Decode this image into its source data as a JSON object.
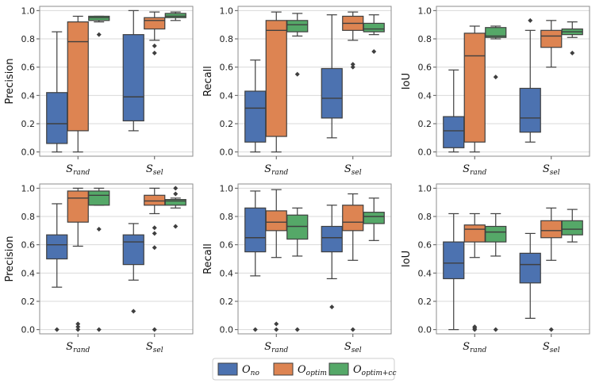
{
  "legend": {
    "entries": [
      {
        "base": "O",
        "sub": "no",
        "color": "#4c72b0"
      },
      {
        "base": "O",
        "sub": "optim",
        "color": "#dd8452"
      },
      {
        "base": "O",
        "sub": "optim+cc",
        "color": "#55a868"
      }
    ]
  },
  "chart_data": [
    {
      "type": "box",
      "ylabel": "Precision",
      "ylim": [
        -0.03,
        1.03
      ],
      "yticks": [
        "0.0",
        "0.2",
        "0.4",
        "0.6",
        "0.8",
        "1.0"
      ],
      "categories": [
        {
          "base": "S",
          "sub": "rand"
        },
        {
          "base": "S",
          "sub": "sel"
        }
      ],
      "groups": [
        [
          {
            "q1": 0.06,
            "med": 0.2,
            "q3": 0.42,
            "lo": 0.0,
            "hi": 0.85,
            "fliers": []
          },
          {
            "q1": 0.15,
            "med": 0.78,
            "q3": 0.92,
            "lo": 0.0,
            "hi": 0.96,
            "fliers": []
          },
          {
            "q1": 0.93,
            "med": 0.95,
            "q3": 0.96,
            "lo": 0.92,
            "hi": 0.96,
            "fliers": [
              0.83
            ]
          }
        ],
        [
          {
            "q1": 0.22,
            "med": 0.39,
            "q3": 0.83,
            "lo": 0.15,
            "hi": 1.0,
            "fliers": []
          },
          {
            "q1": 0.87,
            "med": 0.93,
            "q3": 0.95,
            "lo": 0.79,
            "hi": 0.99,
            "fliers": [
              0.7,
              0.75
            ]
          },
          {
            "q1": 0.95,
            "med": 0.96,
            "q3": 0.98,
            "lo": 0.93,
            "hi": 0.99,
            "fliers": []
          }
        ]
      ]
    },
    {
      "type": "box",
      "ylabel": "Recall",
      "ylim": [
        -0.03,
        1.03
      ],
      "yticks": [
        "0.0",
        "0.2",
        "0.4",
        "0.6",
        "0.8",
        "1.0"
      ],
      "categories": [
        {
          "base": "S",
          "sub": "rand"
        },
        {
          "base": "S",
          "sub": "sel"
        }
      ],
      "groups": [
        [
          {
            "q1": 0.07,
            "med": 0.31,
            "q3": 0.43,
            "lo": 0.0,
            "hi": 0.65,
            "fliers": []
          },
          {
            "q1": 0.11,
            "med": 0.86,
            "q3": 0.93,
            "lo": 0.0,
            "hi": 0.99,
            "fliers": []
          },
          {
            "q1": 0.85,
            "med": 0.9,
            "q3": 0.93,
            "lo": 0.82,
            "hi": 0.98,
            "fliers": [
              0.55
            ]
          }
        ],
        [
          {
            "q1": 0.24,
            "med": 0.38,
            "q3": 0.59,
            "lo": 0.1,
            "hi": 0.97,
            "fliers": []
          },
          {
            "q1": 0.86,
            "med": 0.91,
            "q3": 0.96,
            "lo": 0.79,
            "hi": 0.99,
            "fliers": [
              0.6,
              0.62
            ]
          },
          {
            "q1": 0.85,
            "med": 0.87,
            "q3": 0.91,
            "lo": 0.83,
            "hi": 0.97,
            "fliers": [
              0.71
            ]
          }
        ]
      ]
    },
    {
      "type": "box",
      "ylabel": "IoU",
      "ylim": [
        -0.03,
        1.03
      ],
      "yticks": [
        "0.0",
        "0.2",
        "0.4",
        "0.6",
        "0.8",
        "1.0"
      ],
      "categories": [
        {
          "base": "S",
          "sub": "rand"
        },
        {
          "base": "S",
          "sub": "sel"
        }
      ],
      "groups": [
        [
          {
            "q1": 0.03,
            "med": 0.15,
            "q3": 0.25,
            "lo": 0.0,
            "hi": 0.58,
            "fliers": []
          },
          {
            "q1": 0.07,
            "med": 0.68,
            "q3": 0.84,
            "lo": 0.0,
            "hi": 0.89,
            "fliers": []
          },
          {
            "q1": 0.81,
            "med": 0.82,
            "q3": 0.88,
            "lo": 0.8,
            "hi": 0.89,
            "fliers": [
              0.53
            ]
          }
        ],
        [
          {
            "q1": 0.14,
            "med": 0.24,
            "q3": 0.45,
            "lo": 0.07,
            "hi": 0.86,
            "fliers": [
              0.93
            ]
          },
          {
            "q1": 0.74,
            "med": 0.82,
            "q3": 0.86,
            "lo": 0.6,
            "hi": 0.93,
            "fliers": []
          },
          {
            "q1": 0.83,
            "med": 0.85,
            "q3": 0.87,
            "lo": 0.81,
            "hi": 0.92,
            "fliers": [
              0.7
            ]
          }
        ]
      ]
    },
    {
      "type": "box",
      "ylabel": "Precision",
      "ylim": [
        -0.03,
        1.03
      ],
      "yticks": [
        "0.0",
        "0.2",
        "0.4",
        "0.6",
        "0.8",
        "1.0"
      ],
      "categories": [
        {
          "base": "S",
          "sub": "rand"
        },
        {
          "base": "S",
          "sub": "sel"
        }
      ],
      "groups": [
        [
          {
            "q1": 0.5,
            "med": 0.6,
            "q3": 0.67,
            "lo": 0.3,
            "hi": 0.89,
            "fliers": [
              0.0
            ]
          },
          {
            "q1": 0.76,
            "med": 0.93,
            "q3": 0.98,
            "lo": 0.59,
            "hi": 1.0,
            "fliers": [
              0.0,
              0.02,
              0.04
            ]
          },
          {
            "q1": 0.88,
            "med": 0.95,
            "q3": 0.98,
            "lo": 0.88,
            "hi": 1.0,
            "fliers": [
              0.71,
              0.0
            ]
          }
        ],
        [
          {
            "q1": 0.46,
            "med": 0.62,
            "q3": 0.67,
            "lo": 0.35,
            "hi": 0.75,
            "fliers": [
              0.13
            ]
          },
          {
            "q1": 0.88,
            "med": 0.91,
            "q3": 0.95,
            "lo": 0.82,
            "hi": 1.0,
            "fliers": [
              0.72,
              0.68,
              0.58,
              0.0
            ]
          },
          {
            "q1": 0.88,
            "med": 0.91,
            "q3": 0.92,
            "lo": 0.86,
            "hi": 0.93,
            "fliers": [
              1.0,
              0.96,
              0.73
            ]
          }
        ]
      ]
    },
    {
      "type": "box",
      "ylabel": "Recall",
      "ylim": [
        -0.03,
        1.03
      ],
      "yticks": [
        "0.0",
        "0.2",
        "0.4",
        "0.6",
        "0.8",
        "1.0"
      ],
      "categories": [
        {
          "base": "S",
          "sub": "rand"
        },
        {
          "base": "S",
          "sub": "sel"
        }
      ],
      "groups": [
        [
          {
            "q1": 0.55,
            "med": 0.65,
            "q3": 0.86,
            "lo": 0.38,
            "hi": 0.98,
            "fliers": [
              0.0
            ]
          },
          {
            "q1": 0.7,
            "med": 0.76,
            "q3": 0.84,
            "lo": 0.51,
            "hi": 0.99,
            "fliers": [
              0.0,
              0.04
            ]
          },
          {
            "q1": 0.64,
            "med": 0.73,
            "q3": 0.81,
            "lo": 0.52,
            "hi": 0.86,
            "fliers": [
              0.0
            ]
          }
        ],
        [
          {
            "q1": 0.55,
            "med": 0.65,
            "q3": 0.73,
            "lo": 0.36,
            "hi": 0.88,
            "fliers": [
              0.16
            ]
          },
          {
            "q1": 0.7,
            "med": 0.76,
            "q3": 0.88,
            "lo": 0.49,
            "hi": 0.96,
            "fliers": [
              0.0
            ]
          },
          {
            "q1": 0.75,
            "med": 0.8,
            "q3": 0.83,
            "lo": 0.63,
            "hi": 0.93,
            "fliers": []
          }
        ]
      ]
    },
    {
      "type": "box",
      "ylabel": "IoU",
      "ylim": [
        -0.03,
        1.03
      ],
      "yticks": [
        "0.0",
        "0.2",
        "0.4",
        "0.6",
        "0.8",
        "1.0"
      ],
      "categories": [
        {
          "base": "S",
          "sub": "rand"
        },
        {
          "base": "S",
          "sub": "sel"
        }
      ],
      "groups": [
        [
          {
            "q1": 0.36,
            "med": 0.47,
            "q3": 0.62,
            "lo": 0.0,
            "hi": 0.82,
            "fliers": []
          },
          {
            "q1": 0.62,
            "med": 0.71,
            "q3": 0.74,
            "lo": 0.51,
            "hi": 0.82,
            "fliers": [
              0.0,
              0.01,
              0.02
            ]
          },
          {
            "q1": 0.62,
            "med": 0.69,
            "q3": 0.73,
            "lo": 0.52,
            "hi": 0.82,
            "fliers": [
              0.0
            ]
          }
        ],
        [
          {
            "q1": 0.33,
            "med": 0.46,
            "q3": 0.54,
            "lo": 0.08,
            "hi": 0.68,
            "fliers": []
          },
          {
            "q1": 0.65,
            "med": 0.7,
            "q3": 0.77,
            "lo": 0.49,
            "hi": 0.86,
            "fliers": [
              0.0
            ]
          },
          {
            "q1": 0.67,
            "med": 0.71,
            "q3": 0.77,
            "lo": 0.62,
            "hi": 0.85,
            "fliers": []
          }
        ]
      ]
    }
  ]
}
